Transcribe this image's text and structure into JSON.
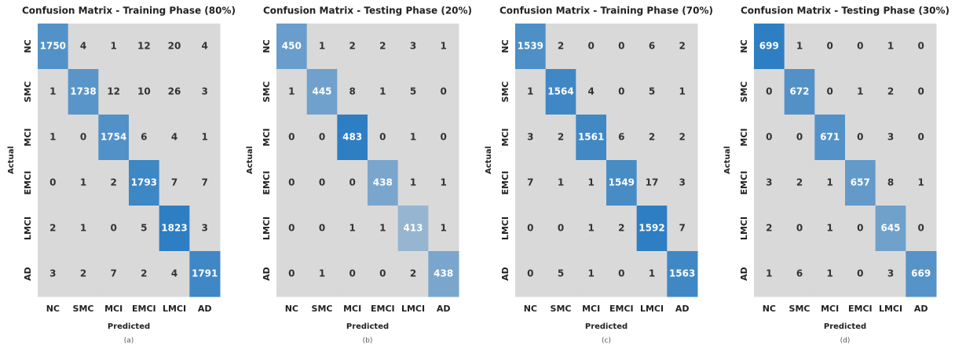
{
  "chart_data": [
    {
      "type": "heatmap",
      "title": "Confusion Matrix - Training Phase (80%)",
      "xlabel": "Predicted",
      "ylabel": "Actual",
      "caption": "(a)",
      "x_categories": [
        "NC",
        "SMC",
        "MCI",
        "EMCI",
        "LMCI",
        "AD"
      ],
      "y_categories": [
        "NC",
        "SMC",
        "MCI",
        "EMCI",
        "LMCI",
        "AD"
      ],
      "colors": [
        "#d9d9d9",
        "#2e7ec3"
      ],
      "values": [
        [
          1750,
          4,
          1,
          12,
          20,
          4
        ],
        [
          1,
          1738,
          12,
          10,
          26,
          3
        ],
        [
          1,
          0,
          1754,
          6,
          4,
          1
        ],
        [
          0,
          1,
          2,
          1793,
          7,
          7
        ],
        [
          2,
          1,
          0,
          5,
          1823,
          3
        ],
        [
          3,
          2,
          7,
          2,
          4,
          1791
        ]
      ]
    },
    {
      "type": "heatmap",
      "title": "Confusion Matrix - Testing Phase (20%)",
      "xlabel": "Predicted",
      "ylabel": "Actual",
      "caption": "(b)",
      "x_categories": [
        "NC",
        "SMC",
        "MCI",
        "EMCI",
        "LMCI",
        "AD"
      ],
      "y_categories": [
        "NC",
        "SMC",
        "MCI",
        "EMCI",
        "LMCI",
        "AD"
      ],
      "colors": [
        "#d9d9d9",
        "#2e7ec3"
      ],
      "values": [
        [
          450,
          1,
          2,
          2,
          3,
          1
        ],
        [
          1,
          445,
          8,
          1,
          5,
          0
        ],
        [
          0,
          0,
          483,
          0,
          1,
          0
        ],
        [
          0,
          0,
          0,
          438,
          1,
          1
        ],
        [
          0,
          0,
          1,
          1,
          413,
          1
        ],
        [
          0,
          1,
          0,
          0,
          2,
          438
        ]
      ]
    },
    {
      "type": "heatmap",
      "title": "Confusion Matrix - Training Phase (70%)",
      "xlabel": "Predicted",
      "ylabel": "Actual",
      "caption": "(c)",
      "x_categories": [
        "NC",
        "SMC",
        "MCI",
        "EMCI",
        "LMCI",
        "AD"
      ],
      "y_categories": [
        "NC",
        "SMC",
        "MCI",
        "EMCI",
        "LMCI",
        "AD"
      ],
      "colors": [
        "#d9d9d9",
        "#2e7ec3"
      ],
      "values": [
        [
          1539,
          2,
          0,
          0,
          6,
          2
        ],
        [
          1,
          1564,
          4,
          0,
          5,
          1
        ],
        [
          3,
          2,
          1561,
          6,
          2,
          2
        ],
        [
          7,
          1,
          1,
          1549,
          17,
          3
        ],
        [
          0,
          0,
          1,
          2,
          1592,
          7
        ],
        [
          0,
          5,
          1,
          0,
          1,
          1563
        ]
      ]
    },
    {
      "type": "heatmap",
      "title": "Confusion Matrix - Testing Phase (30%)",
      "xlabel": "Predicted",
      "ylabel": "Actual",
      "caption": "(d)",
      "x_categories": [
        "NC",
        "SMC",
        "MCI",
        "EMCI",
        "LMCI",
        "AD"
      ],
      "y_categories": [
        "NC",
        "SMC",
        "MCI",
        "EMCI",
        "LMCI",
        "AD"
      ],
      "colors": [
        "#d9d9d9",
        "#2e7ec3"
      ],
      "values": [
        [
          699,
          1,
          0,
          0,
          1,
          0
        ],
        [
          0,
          672,
          0,
          1,
          2,
          0
        ],
        [
          0,
          0,
          671,
          0,
          3,
          0
        ],
        [
          3,
          2,
          1,
          657,
          8,
          1
        ],
        [
          2,
          0,
          1,
          0,
          645,
          0
        ],
        [
          1,
          6,
          1,
          0,
          3,
          669
        ]
      ]
    }
  ]
}
